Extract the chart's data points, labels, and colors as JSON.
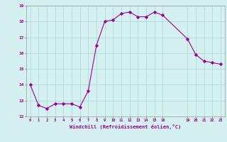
{
  "x": [
    0,
    1,
    2,
    3,
    4,
    5,
    6,
    7,
    8,
    9,
    10,
    11,
    12,
    13,
    14,
    15,
    16,
    19,
    20,
    21,
    22,
    23
  ],
  "y": [
    14.0,
    12.7,
    12.5,
    12.8,
    12.8,
    12.8,
    12.6,
    13.6,
    16.5,
    18.0,
    18.1,
    18.5,
    18.6,
    18.3,
    18.3,
    18.6,
    18.4,
    16.9,
    15.9,
    15.5,
    15.4,
    15.3
  ],
  "line_color": "#990099",
  "marker": "D",
  "marker_size": 1.8,
  "bg_color": "#d4f0f0",
  "grid_color": "#aad4d4",
  "xlabel": "Windchill (Refroidissement éolien,°C)",
  "xlabel_color": "#990099",
  "tick_color": "#990099",
  "ylim": [
    12,
    19
  ],
  "xlim": [
    -0.5,
    23.5
  ],
  "yticks": [
    12,
    13,
    14,
    15,
    16,
    17,
    18,
    19
  ],
  "xticks": [
    0,
    1,
    2,
    3,
    4,
    5,
    6,
    7,
    8,
    9,
    10,
    11,
    12,
    13,
    14,
    15,
    16,
    19,
    20,
    21,
    22,
    23
  ]
}
